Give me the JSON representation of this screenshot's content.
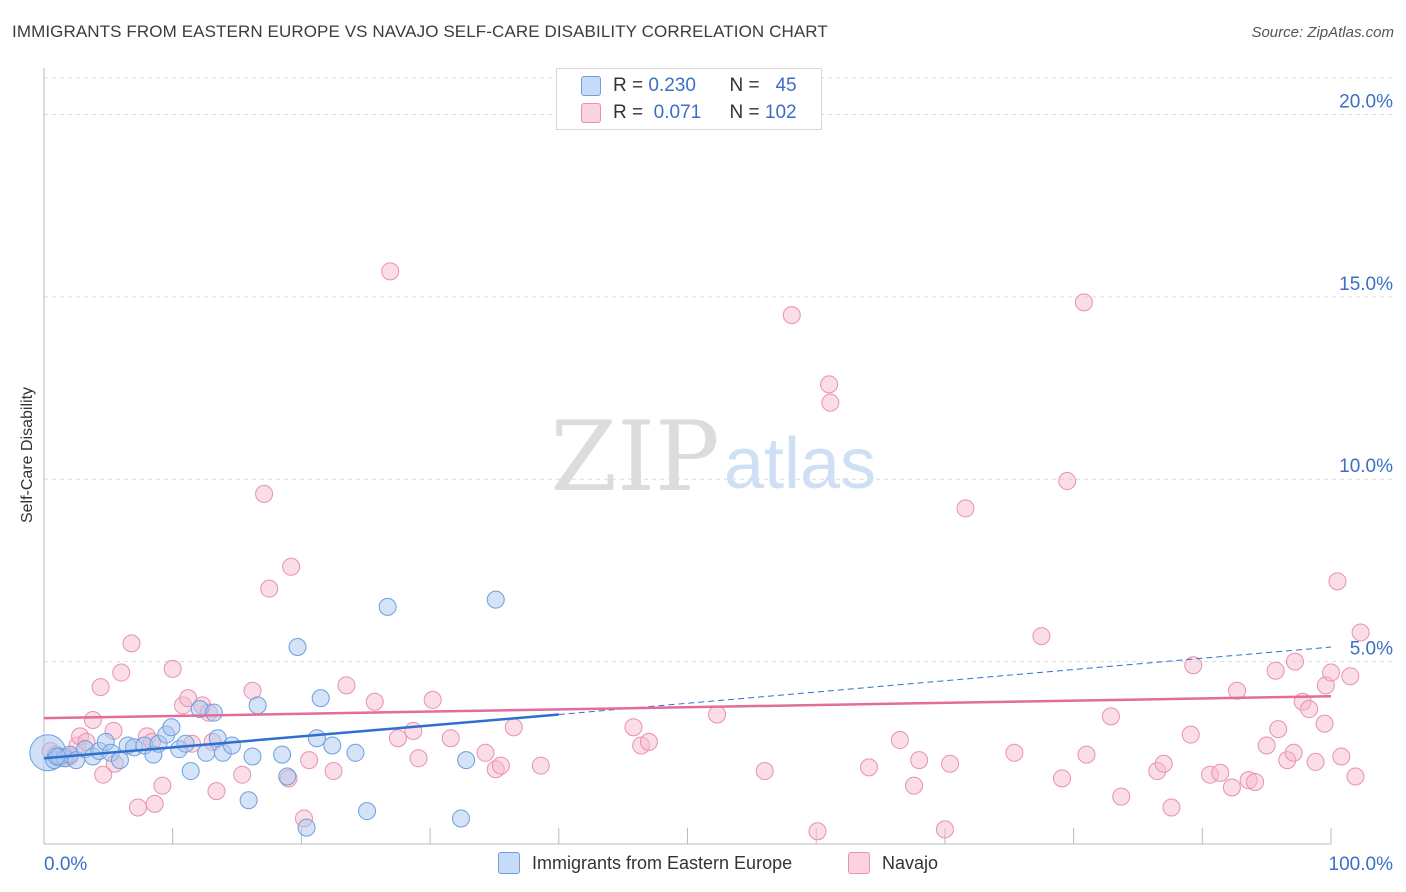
{
  "title": "IMMIGRANTS FROM EASTERN EUROPE VS NAVAJO SELF-CARE DISABILITY CORRELATION CHART",
  "source": "Source: ZipAtlas.com",
  "watermark": {
    "zip": "ZIP",
    "atlas": "atlas"
  },
  "legend": {
    "rows": [
      {
        "r_label": "R =",
        "r_value": "0.230",
        "n_label": "N =",
        "n_value": "45"
      },
      {
        "r_label": "R =",
        "r_value": "0.071",
        "n_label": "N =",
        "n_value": "102"
      }
    ]
  },
  "bottom_legend": {
    "series1": "Immigrants from Eastern Europe",
    "series2": "Navajo"
  },
  "colors": {
    "blue_fill": "#aac8f0",
    "blue_stroke": "#6f9fdd",
    "blue_line": "#2f6fd0",
    "pink_fill": "#f6bcd0",
    "pink_stroke": "#e891b0",
    "pink_line": "#e46c9a",
    "grid": "#dcdcdc",
    "tick_label": "#3c6fc4"
  },
  "chart_data": {
    "type": "scatter",
    "title": "IMMIGRANTS FROM EASTERN EUROPE VS NAVAJO SELF-CARE DISABILITY CORRELATION CHART",
    "xlabel": "",
    "ylabel": "Self-Care Disability",
    "xlim": [
      0,
      100
    ],
    "ylim": [
      0,
      21
    ],
    "x_tick_labels": [
      "0.0%",
      "100.0%"
    ],
    "y_ticks": [
      5,
      10,
      15,
      20
    ],
    "y_tick_labels": [
      "5.0%",
      "10.0%",
      "15.0%",
      "20.0%"
    ],
    "grid": true,
    "legend_position": "top-center",
    "series": [
      {
        "name": "Immigrants from Eastern Europe",
        "color": "#aac8f0",
        "trend": {
          "x": [
            0,
            40,
            100
          ],
          "y": [
            2.35,
            3.55,
            5.4
          ],
          "solid_until": 40
        },
        "points": [
          [
            0.3,
            2.5
          ],
          [
            0.8,
            2.3
          ],
          [
            1.2,
            2.4
          ],
          [
            1.6,
            2.35
          ],
          [
            2.0,
            2.45
          ],
          [
            2.5,
            2.3
          ],
          [
            3.2,
            2.6
          ],
          [
            3.8,
            2.4
          ],
          [
            4.3,
            2.55
          ],
          [
            4.8,
            2.8
          ],
          [
            5.2,
            2.5
          ],
          [
            5.9,
            2.3
          ],
          [
            6.5,
            2.7
          ],
          [
            7.0,
            2.65
          ],
          [
            7.8,
            2.7
          ],
          [
            8.5,
            2.45
          ],
          [
            8.9,
            2.75
          ],
          [
            9.5,
            3.0
          ],
          [
            9.9,
            3.2
          ],
          [
            10.5,
            2.6
          ],
          [
            11.0,
            2.75
          ],
          [
            11.4,
            2.0
          ],
          [
            12.1,
            3.7
          ],
          [
            12.6,
            2.5
          ],
          [
            13.2,
            3.6
          ],
          [
            13.5,
            2.9
          ],
          [
            13.9,
            2.5
          ],
          [
            14.6,
            2.7
          ],
          [
            15.9,
            1.2
          ],
          [
            16.2,
            2.4
          ],
          [
            16.6,
            3.8
          ],
          [
            18.5,
            2.45
          ],
          [
            18.9,
            1.85
          ],
          [
            19.7,
            5.4
          ],
          [
            20.4,
            0.45
          ],
          [
            21.2,
            2.9
          ],
          [
            21.5,
            4.0
          ],
          [
            22.4,
            2.7
          ],
          [
            24.2,
            2.5
          ],
          [
            25.1,
            0.9
          ],
          [
            26.7,
            6.5
          ],
          [
            32.4,
            0.7
          ],
          [
            32.8,
            2.3
          ],
          [
            35.1,
            6.7
          ],
          [
            1.0,
            2.4
          ]
        ]
      },
      {
        "name": "Navajo",
        "color": "#f6bcd0",
        "trend": {
          "x": [
            0,
            100
          ],
          "y": [
            3.45,
            4.05
          ]
        },
        "points": [
          [
            0.5,
            2.55
          ],
          [
            1.2,
            2.35
          ],
          [
            2.0,
            2.4
          ],
          [
            2.6,
            2.7
          ],
          [
            2.8,
            2.95
          ],
          [
            3.3,
            2.8
          ],
          [
            3.8,
            3.4
          ],
          [
            4.4,
            4.3
          ],
          [
            4.6,
            1.9
          ],
          [
            5.4,
            3.1
          ],
          [
            5.5,
            2.2
          ],
          [
            6.0,
            4.7
          ],
          [
            6.8,
            5.5
          ],
          [
            7.3,
            1.0
          ],
          [
            8.0,
            2.95
          ],
          [
            8.4,
            2.8
          ],
          [
            8.6,
            1.1
          ],
          [
            9.2,
            1.6
          ],
          [
            10.0,
            4.8
          ],
          [
            10.8,
            3.8
          ],
          [
            11.2,
            4.0
          ],
          [
            11.5,
            2.75
          ],
          [
            12.3,
            3.8
          ],
          [
            12.8,
            3.6
          ],
          [
            13.1,
            2.8
          ],
          [
            13.4,
            1.45
          ],
          [
            15.4,
            1.9
          ],
          [
            16.2,
            4.2
          ],
          [
            17.1,
            9.6
          ],
          [
            17.5,
            7.0
          ],
          [
            19.0,
            1.8
          ],
          [
            19.2,
            7.6
          ],
          [
            20.2,
            0.7
          ],
          [
            20.6,
            2.3
          ],
          [
            22.5,
            2.0
          ],
          [
            23.5,
            4.35
          ],
          [
            25.7,
            3.9
          ],
          [
            26.9,
            15.7
          ],
          [
            27.5,
            2.9
          ],
          [
            28.7,
            3.1
          ],
          [
            29.1,
            2.35
          ],
          [
            30.2,
            3.95
          ],
          [
            31.6,
            2.9
          ],
          [
            34.3,
            2.5
          ],
          [
            35.1,
            2.05
          ],
          [
            35.5,
            2.15
          ],
          [
            36.5,
            3.2
          ],
          [
            38.6,
            2.15
          ],
          [
            45.8,
            3.2
          ],
          [
            46.4,
            2.7
          ],
          [
            47.0,
            2.8
          ],
          [
            52.3,
            3.55
          ],
          [
            56.0,
            2.0
          ],
          [
            58.1,
            14.5
          ],
          [
            60.1,
            0.35
          ],
          [
            61.0,
            12.6
          ],
          [
            61.1,
            12.1
          ],
          [
            64.1,
            2.1
          ],
          [
            66.5,
            2.85
          ],
          [
            67.6,
            1.6
          ],
          [
            68.0,
            2.3
          ],
          [
            70.0,
            0.4
          ],
          [
            70.4,
            2.2
          ],
          [
            71.6,
            9.2
          ],
          [
            75.4,
            2.5
          ],
          [
            77.5,
            5.7
          ],
          [
            79.1,
            1.8
          ],
          [
            79.5,
            9.95
          ],
          [
            80.8,
            14.85
          ],
          [
            81.0,
            2.45
          ],
          [
            82.9,
            3.5
          ],
          [
            83.7,
            1.3
          ],
          [
            86.5,
            2.0
          ],
          [
            87.0,
            2.2
          ],
          [
            87.6,
            1.0
          ],
          [
            89.1,
            3.0
          ],
          [
            89.3,
            4.9
          ],
          [
            90.6,
            1.9
          ],
          [
            91.4,
            1.95
          ],
          [
            92.3,
            1.55
          ],
          [
            92.7,
            4.2
          ],
          [
            93.6,
            1.75
          ],
          [
            94.1,
            1.7
          ],
          [
            95.0,
            2.7
          ],
          [
            95.7,
            4.75
          ],
          [
            95.9,
            3.15
          ],
          [
            96.6,
            2.3
          ],
          [
            97.1,
            2.5
          ],
          [
            97.2,
            5.0
          ],
          [
            97.8,
            3.9
          ],
          [
            98.3,
            3.7
          ],
          [
            98.8,
            2.25
          ],
          [
            99.5,
            3.3
          ],
          [
            99.6,
            4.35
          ],
          [
            100.0,
            4.7
          ],
          [
            100.5,
            7.2
          ],
          [
            100.8,
            2.4
          ],
          [
            101.5,
            4.6
          ],
          [
            101.9,
            1.85
          ],
          [
            102.3,
            5.8
          ],
          [
            0.9,
            2.45
          ],
          [
            1.7,
            2.35
          ]
        ]
      }
    ]
  }
}
